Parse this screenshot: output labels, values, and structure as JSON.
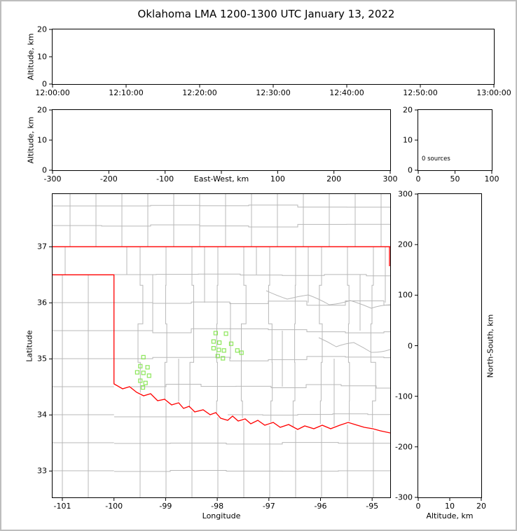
{
  "title": "Oklahoma LMA 1200-1300 UTC January 13, 2022",
  "colors": {
    "state_border": "#ff0000",
    "county_lines": "#b8b8b8",
    "sources": "#8ce65a",
    "axes": "#000000"
  },
  "chart_data": [
    {
      "id": "time_height",
      "type": "scatter",
      "ylabel": "Altitude, km",
      "ylim": [
        0,
        20
      ],
      "y_ticks": [
        0,
        10,
        20
      ],
      "x_tick_labels": [
        "12:00:00",
        "12:10:00",
        "12:20:00",
        "12:30:00",
        "12:40:00",
        "12:50:00",
        "13:00:00"
      ],
      "points": []
    },
    {
      "id": "ew_height",
      "type": "scatter",
      "xlabel": "East-West, km",
      "ylabel": "Altitude, km",
      "xlim": [
        -300,
        300
      ],
      "ylim": [
        0,
        20
      ],
      "x_ticks": [
        -300,
        -200,
        -100,
        100,
        200,
        300
      ],
      "y_ticks": [
        0,
        10,
        20
      ],
      "points": []
    },
    {
      "id": "alt_histogram",
      "type": "line",
      "xlim": [
        0,
        100
      ],
      "ylim": [
        0,
        20
      ],
      "x_ticks": [
        0,
        50,
        100
      ],
      "y_ticks": [
        0,
        10,
        20
      ],
      "annotation": "0 sources",
      "points": []
    },
    {
      "id": "plan_view",
      "type": "scatter",
      "xlabel": "Longitude",
      "ylabel": "Latitude",
      "xlim": [
        -101.19,
        -94.65
      ],
      "ylim": [
        32.53,
        37.94
      ],
      "x_ticks": [
        -101,
        -100,
        -99,
        -98,
        -97,
        -96,
        -95
      ],
      "y_ticks": [
        33,
        34,
        35,
        36,
        37
      ],
      "sources_lonlat": [
        [
          -99.43,
          35.03
        ],
        [
          -99.49,
          34.87
        ],
        [
          -99.35,
          34.85
        ],
        [
          -99.55,
          34.76
        ],
        [
          -99.43,
          34.75
        ],
        [
          -99.32,
          34.7
        ],
        [
          -99.49,
          34.61
        ],
        [
          -99.39,
          34.57
        ],
        [
          -99.44,
          34.49
        ],
        [
          -98.03,
          35.46
        ],
        [
          -97.83,
          35.45
        ],
        [
          -98.07,
          35.31
        ],
        [
          -97.96,
          35.29
        ],
        [
          -97.73,
          35.27
        ],
        [
          -98.07,
          35.19
        ],
        [
          -97.97,
          35.16
        ],
        [
          -97.87,
          35.15
        ],
        [
          -97.61,
          35.15
        ],
        [
          -97.99,
          35.05
        ],
        [
          -97.89,
          35.01
        ],
        [
          -97.53,
          35.11
        ]
      ]
    },
    {
      "id": "ns_height",
      "type": "scatter",
      "xlabel": "Altitude, km",
      "ylabel": "North-South, km",
      "xlim": [
        0,
        20
      ],
      "ylim": [
        -300,
        300
      ],
      "x_ticks": [
        0,
        10,
        20
      ],
      "y_ticks": [
        -300,
        -200,
        -100,
        0,
        100,
        200,
        300
      ],
      "points": []
    }
  ]
}
